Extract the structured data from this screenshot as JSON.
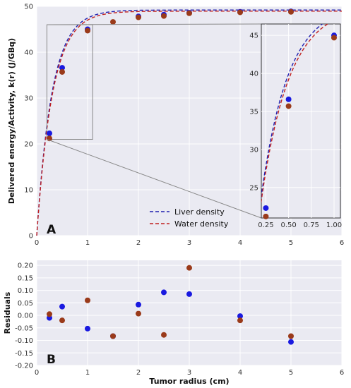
{
  "chart_data": [
    {
      "panel": "A",
      "type": "scatter",
      "ylabel": "Delivered energy/Activity, k(r) (J/GBq)",
      "xlim": [
        0,
        6
      ],
      "ylim": [
        0,
        50
      ],
      "xticks": [
        0,
        1,
        2,
        3,
        4,
        5,
        6
      ],
      "yticks": [
        0,
        10,
        20,
        30,
        40,
        50
      ],
      "grid": true,
      "legend_position": "bottom-right",
      "series": [
        {
          "name": "Liver density",
          "style": "dashed-line",
          "color": "#2020b0",
          "x": [
            0.25,
            0.5,
            1,
            1.5,
            2,
            2.5,
            3,
            4,
            5
          ],
          "y": [
            22.3,
            36.6,
            45.0,
            46.8,
            47.8,
            48.2,
            48.5,
            48.8,
            49.0
          ]
        },
        {
          "name": "Water density",
          "style": "dashed-line",
          "color": "#c02020",
          "x": [
            0.25,
            0.5,
            1,
            1.5,
            2,
            2.5,
            3,
            4,
            5
          ],
          "y": [
            21.3,
            35.7,
            44.7,
            46.7,
            47.5,
            48.0,
            48.5,
            48.7,
            48.8
          ]
        }
      ],
      "points": [
        {
          "series": "liver",
          "color": "#1a1ae0",
          "x": [
            0.25,
            0.5,
            1,
            2,
            2.5,
            3,
            4,
            5
          ],
          "y": [
            22.3,
            36.6,
            45.0,
            47.8,
            48.2,
            48.6,
            48.8,
            48.9
          ]
        },
        {
          "series": "water",
          "color": "#9a3a1a",
          "x": [
            0.25,
            0.5,
            1,
            1.5,
            2,
            2.5,
            3,
            4,
            5
          ],
          "y": [
            21.2,
            35.7,
            44.7,
            46.6,
            47.6,
            47.9,
            48.5,
            48.7,
            48.8
          ]
        }
      ],
      "inset": {
        "xlim": [
          0.2,
          1.07
        ],
        "ylim": [
          21,
          46.5
        ],
        "xticks": [
          0.25,
          0.5,
          0.75,
          1.0
        ],
        "xticklabels": [
          "0.25",
          "0.50",
          "0.75",
          "1.00"
        ],
        "yticks": [
          25,
          30,
          35,
          40,
          45
        ],
        "zoom_box": {
          "xlim": [
            0.2,
            1.1
          ],
          "ylim": [
            21,
            46
          ]
        }
      }
    },
    {
      "panel": "B",
      "type": "scatter",
      "xlabel": "Tumor radius (cm)",
      "ylabel": "Residuals",
      "xlim": [
        0,
        6
      ],
      "ylim": [
        -0.2,
        0.22
      ],
      "xticks": [
        0,
        1,
        2,
        3,
        4,
        5,
        6
      ],
      "yticks": [
        -0.2,
        -0.15,
        -0.1,
        -0.05,
        0.0,
        0.05,
        0.1,
        0.15,
        0.2
      ],
      "yticklabels": [
        "-0.20",
        "-0.15",
        "-0.10",
        "-0.05",
        "0.00",
        "0.05",
        "0.10",
        "0.15",
        "0.20"
      ],
      "grid": true,
      "series": [
        {
          "name": "liver",
          "color": "#1a1ae0",
          "x": [
            0.25,
            0.5,
            1,
            1.5,
            2,
            2.5,
            3,
            4,
            5
          ],
          "y": [
            -0.01,
            0.035,
            -0.053,
            -0.083,
            0.043,
            0.092,
            0.085,
            -0.003,
            -0.106
          ]
        },
        {
          "name": "water",
          "color": "#9a3a1a",
          "x": [
            0.25,
            0.5,
            1,
            1.5,
            2,
            2.5,
            3,
            4,
            5
          ],
          "y": [
            0.005,
            -0.02,
            0.06,
            -0.083,
            0.007,
            -0.078,
            0.19,
            -0.02,
            -0.083
          ]
        }
      ]
    }
  ],
  "labels": {
    "panel_a": "A",
    "panel_b": "B"
  }
}
